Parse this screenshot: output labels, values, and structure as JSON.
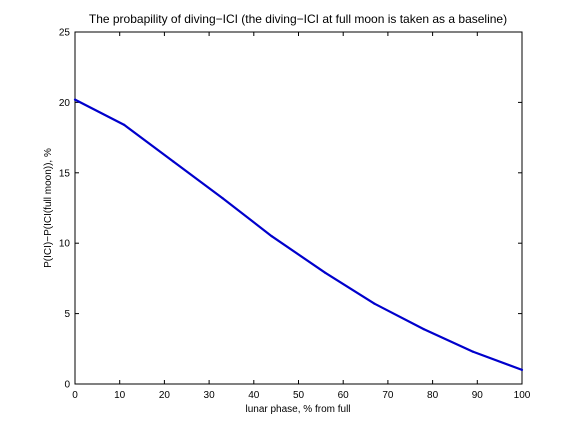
{
  "chart_data": {
    "type": "line",
    "title": "The probapility of diving−ICI (the diving−ICI at full moon is taken as a baseline)",
    "xlabel": "lunar phase, % from full",
    "ylabel": "P(ICI)−P(ICI(full moon)), %",
    "xlim": [
      0,
      100
    ],
    "ylim": [
      0,
      25
    ],
    "xticks": [
      "0",
      "10",
      "20",
      "30",
      "40",
      "50",
      "60",
      "70",
      "80",
      "90",
      "100"
    ],
    "yticks": [
      "0",
      "5",
      "10",
      "15",
      "20",
      "25"
    ],
    "grid": false,
    "series": [
      {
        "color": "#0000cc",
        "x": [
          0,
          11,
          22,
          33,
          44,
          56,
          67,
          78,
          89,
          100
        ],
        "y": [
          20.2,
          18.4,
          15.8,
          13.2,
          10.5,
          7.9,
          5.7,
          3.9,
          2.3,
          1.0
        ]
      }
    ]
  }
}
